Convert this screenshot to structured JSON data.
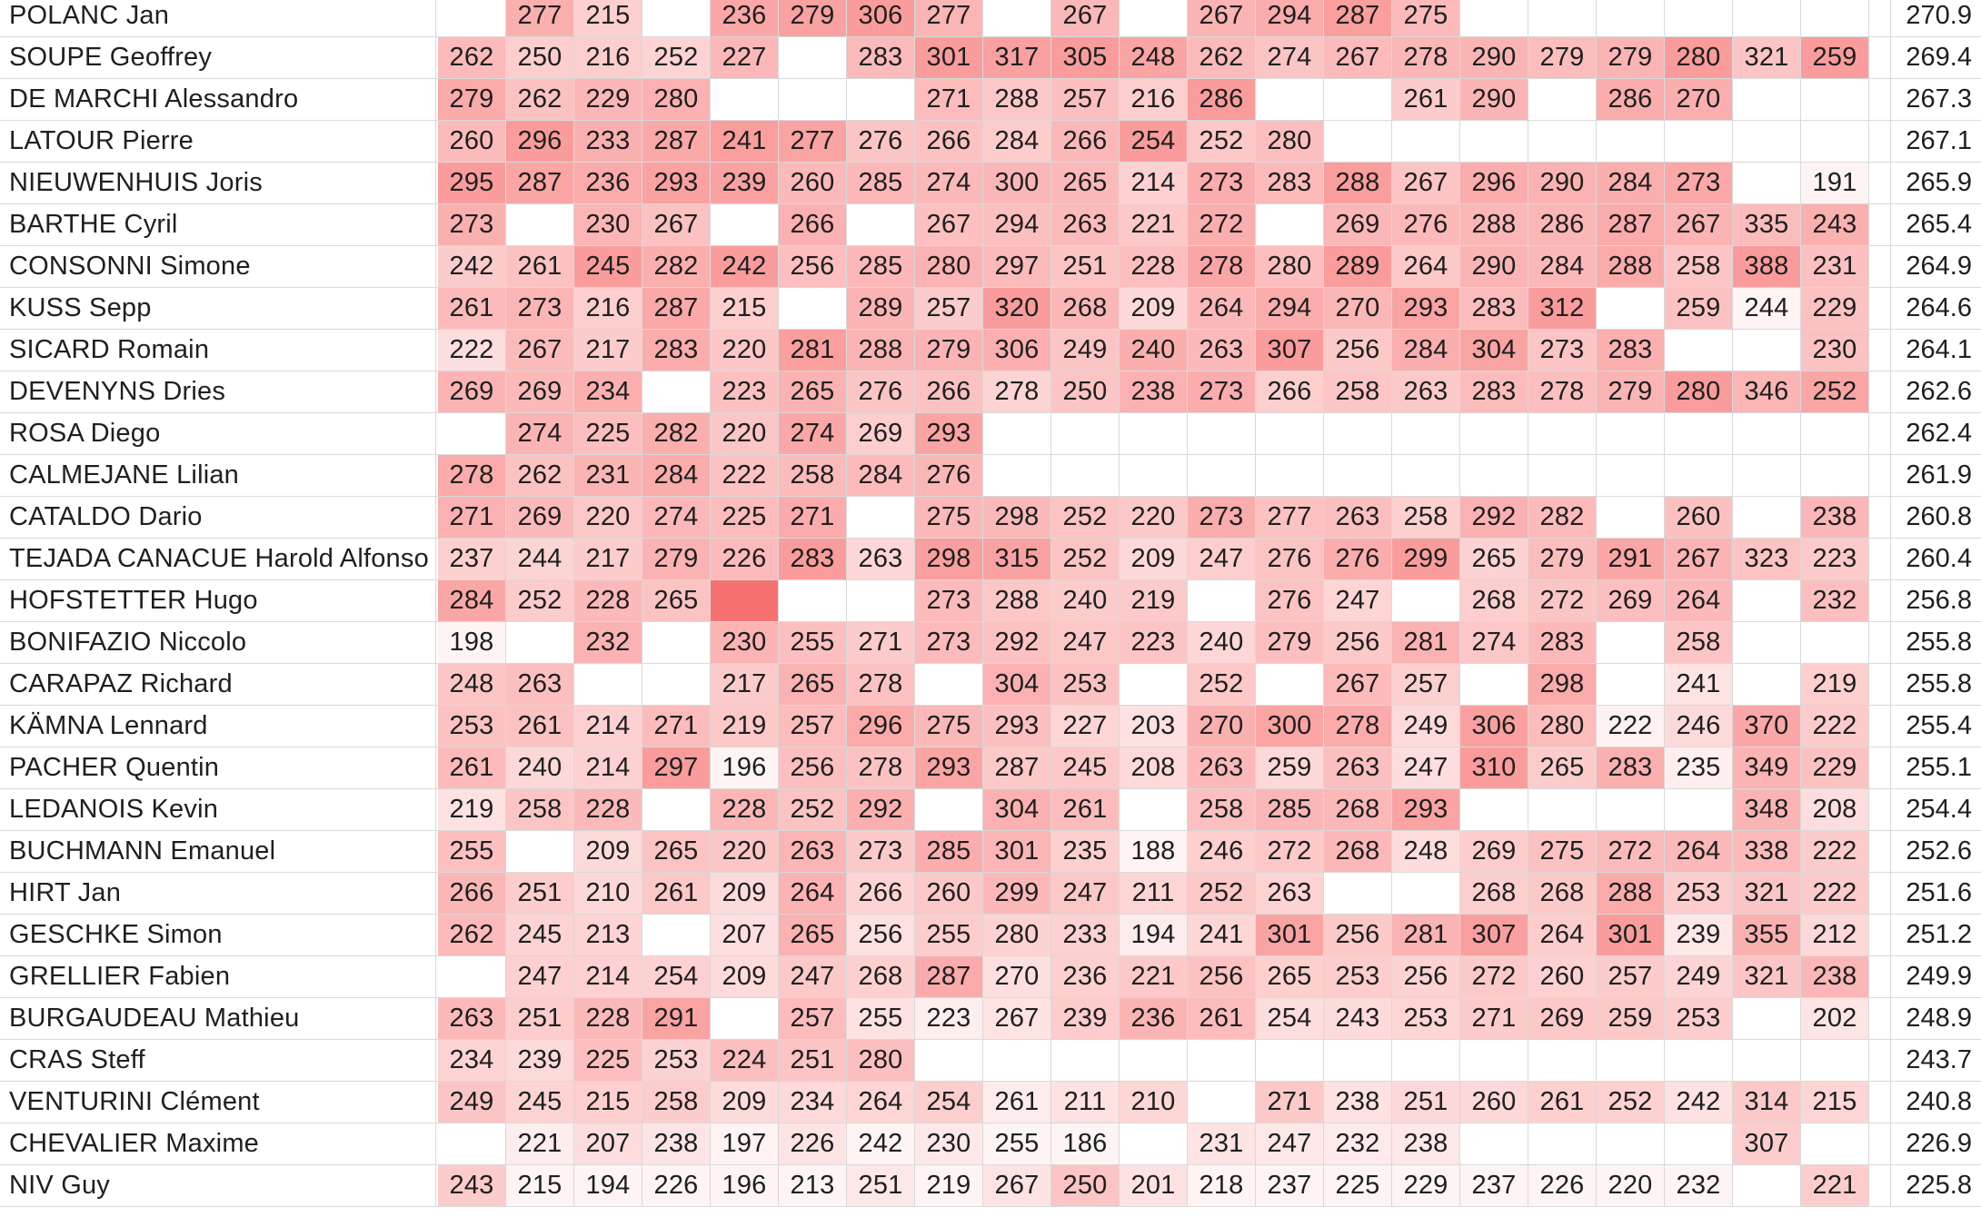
{
  "sheet": {
    "rows": [
      {
        "name": "POLANC Jan",
        "values": [
          null,
          277,
          215,
          null,
          236,
          279,
          306,
          277,
          null,
          267,
          null,
          267,
          294,
          287,
          275,
          null,
          null,
          null,
          null,
          null,
          null
        ],
        "avg": "270.9"
      },
      {
        "name": "SOUPE Geoffrey",
        "values": [
          262,
          250,
          216,
          252,
          227,
          null,
          283,
          301,
          317,
          305,
          248,
          262,
          274,
          267,
          278,
          290,
          279,
          279,
          280,
          321,
          259
        ],
        "avg": "269.4"
      },
      {
        "name": "DE MARCHI Alessandro",
        "values": [
          279,
          262,
          229,
          280,
          null,
          null,
          null,
          271,
          288,
          257,
          216,
          286,
          null,
          null,
          261,
          290,
          null,
          286,
          270,
          null,
          null
        ],
        "avg": "267.3"
      },
      {
        "name": "LATOUR Pierre",
        "values": [
          260,
          296,
          233,
          287,
          241,
          277,
          276,
          266,
          284,
          266,
          254,
          252,
          280,
          null,
          null,
          null,
          null,
          null,
          null,
          null,
          null
        ],
        "avg": "267.1"
      },
      {
        "name": "NIEUWENHUIS Joris",
        "values": [
          295,
          287,
          236,
          293,
          239,
          260,
          285,
          274,
          300,
          265,
          214,
          273,
          283,
          288,
          267,
          296,
          290,
          284,
          273,
          null,
          191
        ],
        "avg": "265.9"
      },
      {
        "name": "BARTHE Cyril",
        "values": [
          273,
          null,
          230,
          267,
          null,
          266,
          null,
          267,
          294,
          263,
          221,
          272,
          null,
          269,
          276,
          288,
          286,
          287,
          267,
          335,
          243
        ],
        "avg": "265.4"
      },
      {
        "name": "CONSONNI Simone",
        "values": [
          242,
          261,
          245,
          282,
          242,
          256,
          285,
          280,
          297,
          251,
          228,
          278,
          280,
          289,
          264,
          290,
          284,
          288,
          258,
          388,
          231
        ],
        "avg": "264.9"
      },
      {
        "name": "KUSS Sepp",
        "values": [
          261,
          273,
          216,
          287,
          215,
          null,
          289,
          257,
          320,
          268,
          209,
          264,
          294,
          270,
          293,
          283,
          312,
          null,
          259,
          244,
          229
        ],
        "avg": "264.6"
      },
      {
        "name": "SICARD Romain",
        "values": [
          222,
          267,
          217,
          283,
          220,
          281,
          288,
          279,
          306,
          249,
          240,
          263,
          307,
          256,
          284,
          304,
          273,
          283,
          null,
          null,
          230
        ],
        "avg": "264.1"
      },
      {
        "name": "DEVENYNS Dries",
        "values": [
          269,
          269,
          234,
          null,
          223,
          265,
          276,
          266,
          278,
          250,
          238,
          273,
          266,
          258,
          263,
          283,
          278,
          279,
          280,
          346,
          252
        ],
        "avg": "262.6"
      },
      {
        "name": "ROSA Diego",
        "values": [
          null,
          274,
          225,
          282,
          220,
          274,
          269,
          293,
          null,
          null,
          null,
          null,
          null,
          null,
          null,
          null,
          null,
          null,
          null,
          null,
          null
        ],
        "avg": "262.4"
      },
      {
        "name": "CALMEJANE Lilian",
        "values": [
          278,
          262,
          231,
          284,
          222,
          258,
          284,
          276,
          null,
          null,
          null,
          null,
          null,
          null,
          null,
          null,
          null,
          null,
          null,
          null,
          null
        ],
        "avg": "261.9"
      },
      {
        "name": "CATALDO Dario",
        "values": [
          271,
          269,
          220,
          274,
          225,
          271,
          null,
          275,
          298,
          252,
          220,
          273,
          277,
          263,
          258,
          292,
          282,
          null,
          260,
          null,
          238
        ],
        "avg": "260.8"
      },
      {
        "name": "TEJADA CANACUE Harold Alfonso",
        "values": [
          237,
          244,
          217,
          279,
          226,
          283,
          263,
          298,
          315,
          252,
          209,
          247,
          276,
          276,
          299,
          265,
          279,
          291,
          267,
          323,
          223
        ],
        "avg": "260.4"
      },
      {
        "name": "HOFSTETTER Hugo",
        "values": [
          284,
          252,
          228,
          265,
          "",
          null,
          null,
          273,
          288,
          240,
          219,
          null,
          276,
          247,
          null,
          268,
          272,
          269,
          264,
          null,
          232
        ],
        "avg": "256.8"
      },
      {
        "name": "BONIFAZIO Niccolo",
        "values": [
          198,
          null,
          232,
          null,
          230,
          255,
          271,
          273,
          292,
          247,
          223,
          240,
          279,
          256,
          281,
          274,
          283,
          null,
          258,
          null,
          null
        ],
        "avg": "255.8"
      },
      {
        "name": "CARAPAZ Richard",
        "values": [
          248,
          263,
          null,
          null,
          217,
          265,
          278,
          null,
          304,
          253,
          null,
          252,
          null,
          267,
          257,
          null,
          298,
          null,
          241,
          null,
          219
        ],
        "avg": "255.8"
      },
      {
        "name": "KÄMNA Lennard",
        "values": [
          253,
          261,
          214,
          271,
          219,
          257,
          296,
          275,
          293,
          227,
          203,
          270,
          300,
          278,
          249,
          306,
          280,
          222,
          246,
          370,
          222
        ],
        "avg": "255.4"
      },
      {
        "name": "PACHER Quentin",
        "values": [
          261,
          240,
          214,
          297,
          196,
          256,
          278,
          293,
          287,
          245,
          208,
          263,
          259,
          263,
          247,
          310,
          265,
          283,
          235,
          349,
          229
        ],
        "avg": "255.1"
      },
      {
        "name": "LEDANOIS Kevin",
        "values": [
          219,
          258,
          228,
          null,
          228,
          252,
          292,
          null,
          304,
          261,
          null,
          258,
          285,
          268,
          293,
          null,
          null,
          null,
          null,
          348,
          208
        ],
        "avg": "254.4"
      },
      {
        "name": "BUCHMANN Emanuel",
        "values": [
          255,
          null,
          209,
          265,
          220,
          263,
          273,
          285,
          301,
          235,
          188,
          246,
          272,
          268,
          248,
          269,
          275,
          272,
          264,
          338,
          222
        ],
        "avg": "252.6"
      },
      {
        "name": "HIRT Jan",
        "values": [
          266,
          251,
          210,
          261,
          209,
          264,
          266,
          260,
          299,
          247,
          211,
          252,
          263,
          null,
          null,
          268,
          268,
          288,
          253,
          321,
          222
        ],
        "avg": "251.6"
      },
      {
        "name": "GESCHKE Simon",
        "values": [
          262,
          245,
          213,
          null,
          207,
          265,
          256,
          255,
          280,
          233,
          194,
          241,
          301,
          256,
          281,
          307,
          264,
          301,
          239,
          355,
          212
        ],
        "avg": "251.2"
      },
      {
        "name": "GRELLIER Fabien",
        "values": [
          null,
          247,
          214,
          254,
          209,
          247,
          268,
          287,
          270,
          236,
          221,
          256,
          265,
          253,
          256,
          272,
          260,
          257,
          249,
          321,
          238
        ],
        "avg": "249.9"
      },
      {
        "name": "BURGAUDEAU Mathieu",
        "values": [
          263,
          251,
          228,
          291,
          null,
          257,
          255,
          223,
          267,
          239,
          236,
          261,
          254,
          243,
          253,
          271,
          269,
          259,
          253,
          null,
          202
        ],
        "avg": "248.9"
      },
      {
        "name": "CRAS Steff",
        "values": [
          234,
          239,
          225,
          253,
          224,
          251,
          280,
          null,
          null,
          null,
          null,
          null,
          null,
          null,
          null,
          null,
          null,
          null,
          null,
          null,
          null
        ],
        "avg": "243.7"
      },
      {
        "name": "VENTURINI Clément",
        "values": [
          249,
          245,
          215,
          258,
          209,
          234,
          264,
          254,
          261,
          211,
          210,
          null,
          271,
          238,
          251,
          260,
          261,
          252,
          242,
          314,
          215
        ],
        "avg": "240.8"
      },
      {
        "name": "CHEVALIER Maxime",
        "values": [
          null,
          221,
          207,
          238,
          197,
          226,
          242,
          230,
          255,
          186,
          null,
          231,
          247,
          232,
          238,
          null,
          null,
          null,
          null,
          307,
          null
        ],
        "avg": "226.9"
      },
      {
        "name": "NIV Guy",
        "values": [
          243,
          215,
          194,
          226,
          196,
          213,
          251,
          219,
          267,
          250,
          201,
          218,
          237,
          225,
          229,
          237,
          226,
          220,
          232,
          null,
          221
        ],
        "avg": "225.8"
      }
    ],
    "colors": {
      "heat_low": "#ffffff",
      "heat_high": "#f87171",
      "grid": "#d9d9d9",
      "text": "#1f1f1f"
    }
  }
}
